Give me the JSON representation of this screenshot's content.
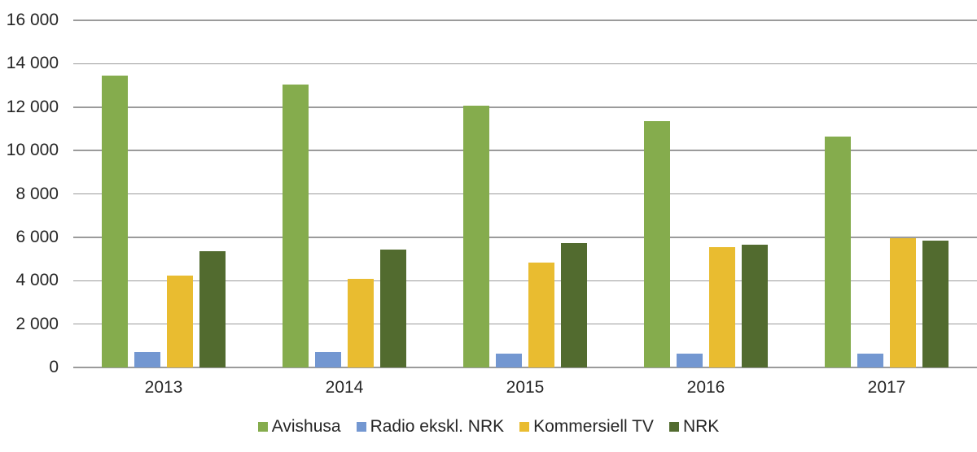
{
  "chart_data": {
    "type": "bar",
    "title": "",
    "xlabel": "",
    "ylabel": "",
    "categories": [
      "2013",
      "2014",
      "2015",
      "2016",
      "2017"
    ],
    "series": [
      {
        "name": "Avishusa",
        "color": "#85AC4D",
        "values": [
          13450,
          13050,
          12050,
          11350,
          10650
        ]
      },
      {
        "name": "Radio ekskl. NRK",
        "color": "#7397D1",
        "values": [
          730,
          730,
          650,
          650,
          650
        ]
      },
      {
        "name": "Kommersiell TV",
        "color": "#E9BC30",
        "values": [
          4250,
          4100,
          4850,
          5550,
          5950
        ]
      },
      {
        "name": "NRK",
        "color": "#526B2F",
        "values": [
          5350,
          5450,
          5750,
          5650,
          5850
        ]
      }
    ],
    "ylim": [
      0,
      16000
    ],
    "ytick_step": 2000,
    "ytick_labels": [
      "0",
      "2 000",
      "4 000",
      "6 000",
      "8 000",
      "10 000",
      "12 000",
      "14 000",
      "16 000"
    ],
    "grid": "horizontal",
    "gridline_color": "#9b9b9b",
    "text_color": "#262626",
    "legend_position": "bottom"
  }
}
